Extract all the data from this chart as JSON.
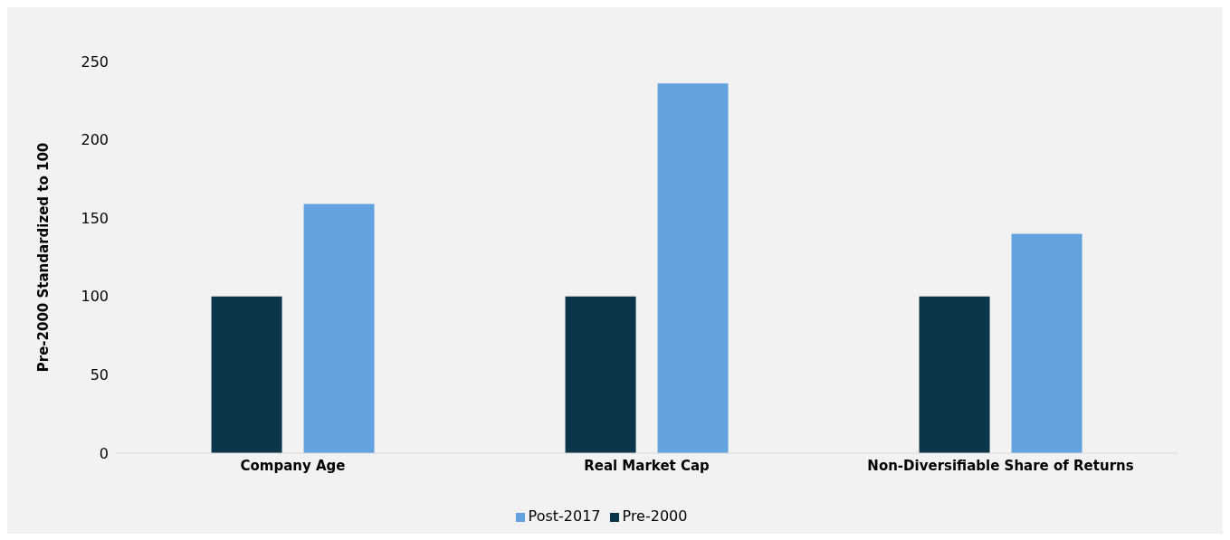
{
  "chart_data": {
    "type": "bar",
    "ylabel": "Pre-2000 Standardized to 100",
    "categories": [
      "Company Age",
      "Real Market Cap",
      "Non-Diversifiable Share of Returns"
    ],
    "series": [
      {
        "name": "Pre-2000",
        "color": "#0b3649",
        "values": [
          100,
          100,
          100
        ]
      },
      {
        "name": "Post-2017",
        "color": "#62a2de",
        "values": [
          159,
          236,
          140
        ]
      }
    ],
    "ylim": [
      0,
      250
    ],
    "yticks": [
      0,
      50,
      100,
      150,
      200,
      250
    ],
    "grid": false,
    "legend": "bottom"
  }
}
